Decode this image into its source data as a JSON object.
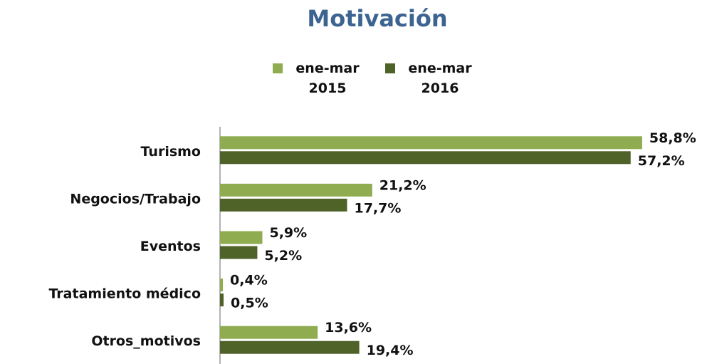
{
  "chart_data": {
    "type": "bar",
    "orientation": "horizontal",
    "title": "Motivación",
    "categories": [
      "Turismo",
      "Negocios/Trabajo",
      "Eventos",
      "Tratamiento médico",
      "Otros_motivos"
    ],
    "series": [
      {
        "name": "ene-mar 2015",
        "color": "#8fac50",
        "values": [
          58.8,
          21.2,
          5.9,
          0.4,
          13.6
        ],
        "value_labels": [
          "58,8%",
          "21,2%",
          "5,9%",
          "0,4%",
          "13,6%"
        ]
      },
      {
        "name": "ene-mar 2016",
        "color": "#4f6228",
        "values": [
          57.2,
          17.7,
          5.2,
          0.5,
          19.4
        ],
        "value_labels": [
          "57,2%",
          "17,7%",
          "5,2%",
          "0,5%",
          "19,4%"
        ]
      }
    ],
    "xlim": [
      0,
      60
    ],
    "legend": "top"
  }
}
